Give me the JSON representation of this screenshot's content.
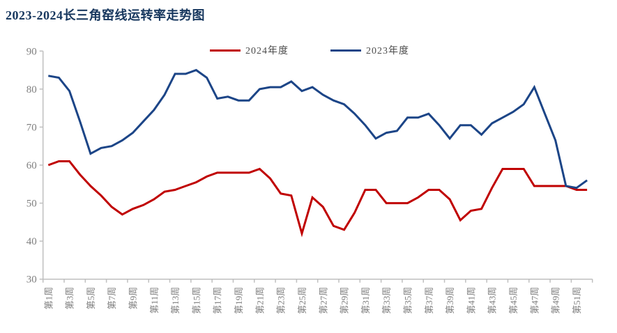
{
  "page": {
    "title": "2023-2024长三角窑线运转率走势图",
    "title_color": "#17375E"
  },
  "chart_data": {
    "type": "line",
    "title": "2023-2024长三角窑线运转率走势图",
    "xlabel": "",
    "ylabel": "",
    "ylim": [
      30,
      90
    ],
    "y_ticks": [
      30,
      40,
      50,
      60,
      70,
      80,
      90
    ],
    "x_tick_labels": [
      "第1周",
      "第3周",
      "第5周",
      "第7周",
      "第9周",
      "第11周",
      "第13周",
      "第15周",
      "第17周",
      "第19周",
      "第21周",
      "第23周",
      "第25周",
      "第27周",
      "第29周",
      "第31周",
      "第33周",
      "第35周",
      "第37周",
      "第39周",
      "第41周",
      "第43周",
      "第45周",
      "第47周",
      "第49周",
      "第51周"
    ],
    "weeks_total": 52,
    "grid": false,
    "legend_position": "top",
    "axis_color": "#BFBFBF",
    "tick_label_color": "#7F7F7F",
    "series": [
      {
        "name": "2024年度",
        "color": "#C00000",
        "values": [
          60,
          61,
          61,
          57.5,
          54.5,
          52,
          49,
          47,
          48.5,
          49.5,
          51,
          53,
          53.5,
          54.5,
          55.5,
          57,
          58,
          58,
          58,
          58,
          59,
          56.5,
          52.5,
          52,
          42,
          51.5,
          49,
          44,
          43,
          47.5,
          53.5,
          53.5,
          50,
          50,
          50,
          51.5,
          53.5,
          53.5,
          51,
          45.5,
          48,
          48.5,
          54,
          59,
          59,
          59,
          54.5,
          54.5,
          54.5,
          54.5,
          53.5,
          53.5
        ]
      },
      {
        "name": "2023年度",
        "color": "#1C4587",
        "values": [
          83.5,
          83,
          79.5,
          71.5,
          63,
          64.5,
          65,
          66.5,
          68.5,
          71.5,
          74.5,
          78.5,
          84,
          84,
          85,
          83,
          77.5,
          78,
          77,
          77,
          80,
          80.5,
          80.5,
          82,
          79.5,
          80.5,
          78.5,
          77,
          76,
          73.5,
          70.5,
          67,
          68.5,
          69,
          72.5,
          72.5,
          73.5,
          70.5,
          67,
          70.5,
          70.5,
          68,
          71,
          72.5,
          74,
          76,
          80.5,
          73.5,
          66.5,
          54.5,
          54,
          56
        ]
      }
    ]
  }
}
